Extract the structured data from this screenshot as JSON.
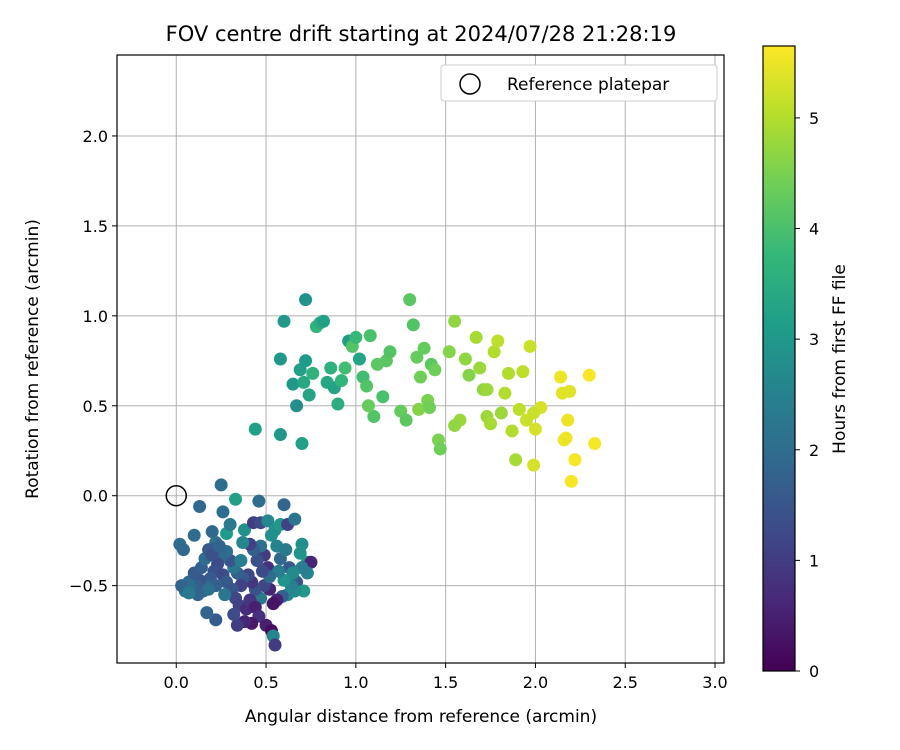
{
  "chart_data": {
    "type": "scatter",
    "title": "FOV centre drift starting at 2024/07/28 21:28:19",
    "xlabel": "Angular distance from reference (arcmin)",
    "ylabel": "Rotation from reference (arcmin)",
    "xlim": [
      -0.33,
      3.05
    ],
    "ylim": [
      -0.93,
      2.45
    ],
    "xticks": [
      0.0,
      0.5,
      1.0,
      1.5,
      2.0,
      2.5,
      3.0
    ],
    "xtick_labels": [
      "0.0",
      "0.5",
      "1.0",
      "1.5",
      "2.0",
      "2.5",
      "3.0"
    ],
    "yticks": [
      -0.5,
      0.0,
      0.5,
      1.0,
      1.5,
      2.0
    ],
    "ytick_labels": [
      "−0.5",
      "0.0",
      "0.5",
      "1.0",
      "1.5",
      "2.0"
    ],
    "grid": true,
    "legend_position": "top-right",
    "legend": {
      "label": "Reference platepar",
      "marker": "open-circle"
    },
    "reference_point": {
      "x": 0.0,
      "y": 0.0
    },
    "colorbar": {
      "label": "Hours from first FF file",
      "colormap": "viridis",
      "range": [
        0,
        5.65
      ],
      "ticks": [
        0,
        1,
        2,
        3,
        4,
        5
      ],
      "tick_labels": [
        "0",
        "1",
        "2",
        "3",
        "4",
        "5"
      ],
      "stops": [
        "#440154",
        "#482878",
        "#3e4a89",
        "#31688e",
        "#26828e",
        "#1f9e89",
        "#35b779",
        "#6ece58",
        "#b5de2b",
        "#fde725"
      ]
    },
    "series": [
      {
        "color_encoding": "hours",
        "points": [
          {
            "x": 0.25,
            "y": 0.06,
            "h": 2.0
          },
          {
            "x": 0.13,
            "y": -0.06,
            "h": 1.9
          },
          {
            "x": 0.46,
            "y": -0.03,
            "h": 2.0
          },
          {
            "x": 0.33,
            "y": -0.02,
            "h": 3.2
          },
          {
            "x": 0.6,
            "y": -0.05,
            "h": 1.8
          },
          {
            "x": 0.26,
            "y": -0.09,
            "h": 2.0
          },
          {
            "x": 0.02,
            "y": -0.27,
            "h": 2.0
          },
          {
            "x": 0.04,
            "y": -0.3,
            "h": 1.9
          },
          {
            "x": 0.1,
            "y": -0.22,
            "h": 2.0
          },
          {
            "x": 0.2,
            "y": -0.2,
            "h": 1.9
          },
          {
            "x": 0.22,
            "y": -0.26,
            "h": 2.1
          },
          {
            "x": 0.28,
            "y": -0.21,
            "h": 3.1
          },
          {
            "x": 0.3,
            "y": -0.16,
            "h": 2.3
          },
          {
            "x": 0.38,
            "y": -0.19,
            "h": 2.8
          },
          {
            "x": 0.43,
            "y": -0.15,
            "h": 1.0
          },
          {
            "x": 0.47,
            "y": -0.15,
            "h": 1.3
          },
          {
            "x": 0.51,
            "y": -0.14,
            "h": 2.6
          },
          {
            "x": 0.55,
            "y": -0.19,
            "h": 2.9
          },
          {
            "x": 0.58,
            "y": -0.16,
            "h": 3.0
          },
          {
            "x": 0.62,
            "y": -0.16,
            "h": 1.1
          },
          {
            "x": 0.66,
            "y": -0.13,
            "h": 2.2
          },
          {
            "x": 0.7,
            "y": -0.27,
            "h": 2.8
          },
          {
            "x": 0.73,
            "y": -0.37,
            "h": 3.1
          },
          {
            "x": 0.69,
            "y": -0.32,
            "h": 2.9
          },
          {
            "x": 0.75,
            "y": -0.37,
            "h": 0.6
          },
          {
            "x": 0.73,
            "y": -0.43,
            "h": 2.5
          },
          {
            "x": 0.7,
            "y": -0.4,
            "h": 2.4
          },
          {
            "x": 0.67,
            "y": -0.48,
            "h": 1.5
          },
          {
            "x": 0.71,
            "y": -0.53,
            "h": 3.0
          },
          {
            "x": 0.66,
            "y": -0.53,
            "h": 2.7
          },
          {
            "x": 0.64,
            "y": -0.5,
            "h": 2.5
          },
          {
            "x": 0.62,
            "y": -0.55,
            "h": 2.6
          },
          {
            "x": 0.59,
            "y": -0.56,
            "h": 1.7
          },
          {
            "x": 0.56,
            "y": -0.58,
            "h": 0.5
          },
          {
            "x": 0.54,
            "y": -0.6,
            "h": 0.3
          },
          {
            "x": 0.52,
            "y": -0.52,
            "h": 0.6
          },
          {
            "x": 0.49,
            "y": -0.5,
            "h": 1.2
          },
          {
            "x": 0.47,
            "y": -0.57,
            "h": 2.3
          },
          {
            "x": 0.44,
            "y": -0.52,
            "h": 1.4
          },
          {
            "x": 0.42,
            "y": -0.48,
            "h": 0.9
          },
          {
            "x": 0.4,
            "y": -0.44,
            "h": 1.2
          },
          {
            "x": 0.37,
            "y": -0.46,
            "h": 1.6
          },
          {
            "x": 0.36,
            "y": -0.5,
            "h": 1.1
          },
          {
            "x": 0.34,
            "y": -0.43,
            "h": 1.7
          },
          {
            "x": 0.32,
            "y": -0.4,
            "h": 2.2
          },
          {
            "x": 0.3,
            "y": -0.36,
            "h": 1.5
          },
          {
            "x": 0.28,
            "y": -0.31,
            "h": 2.0
          },
          {
            "x": 0.25,
            "y": -0.34,
            "h": 1.9
          },
          {
            "x": 0.23,
            "y": -0.38,
            "h": 1.3
          },
          {
            "x": 0.21,
            "y": -0.42,
            "h": 1.4
          },
          {
            "x": 0.19,
            "y": -0.46,
            "h": 1.6
          },
          {
            "x": 0.17,
            "y": -0.5,
            "h": 1.8
          },
          {
            "x": 0.15,
            "y": -0.53,
            "h": 2.0
          },
          {
            "x": 0.13,
            "y": -0.47,
            "h": 1.5
          },
          {
            "x": 0.11,
            "y": -0.5,
            "h": 1.7
          },
          {
            "x": 0.09,
            "y": -0.52,
            "h": 1.9
          },
          {
            "x": 0.07,
            "y": -0.48,
            "h": 2.0
          },
          {
            "x": 0.05,
            "y": -0.53,
            "h": 2.1
          },
          {
            "x": 0.03,
            "y": -0.5,
            "h": 1.8
          },
          {
            "x": 0.1,
            "y": -0.43,
            "h": 1.6
          },
          {
            "x": 0.14,
            "y": -0.4,
            "h": 1.7
          },
          {
            "x": 0.16,
            "y": -0.35,
            "h": 2.0
          },
          {
            "x": 0.18,
            "y": -0.3,
            "h": 1.6
          },
          {
            "x": 0.2,
            "y": -0.33,
            "h": 1.4
          },
          {
            "x": 0.24,
            "y": -0.28,
            "h": 1.8
          },
          {
            "x": 0.26,
            "y": -0.44,
            "h": 1.3
          },
          {
            "x": 0.28,
            "y": -0.48,
            "h": 1.6
          },
          {
            "x": 0.31,
            "y": -0.52,
            "h": 1.5
          },
          {
            "x": 0.33,
            "y": -0.57,
            "h": 1.2
          },
          {
            "x": 0.35,
            "y": -0.61,
            "h": 1.1
          },
          {
            "x": 0.39,
            "y": -0.63,
            "h": 0.7
          },
          {
            "x": 0.41,
            "y": -0.58,
            "h": 0.9
          },
          {
            "x": 0.44,
            "y": -0.62,
            "h": 0.5
          },
          {
            "x": 0.46,
            "y": -0.67,
            "h": 0.8
          },
          {
            "x": 0.42,
            "y": -0.71,
            "h": 0.4
          },
          {
            "x": 0.38,
            "y": -0.7,
            "h": 0.6
          },
          {
            "x": 0.34,
            "y": -0.72,
            "h": 1.0
          },
          {
            "x": 0.32,
            "y": -0.66,
            "h": 1.3
          },
          {
            "x": 0.22,
            "y": -0.69,
            "h": 1.6
          },
          {
            "x": 0.17,
            "y": -0.65,
            "h": 1.8
          },
          {
            "x": 0.27,
            "y": -0.55,
            "h": 2.2
          },
          {
            "x": 0.5,
            "y": -0.72,
            "h": 0.5
          },
          {
            "x": 0.53,
            "y": -0.75,
            "h": 0.2
          },
          {
            "x": 0.54,
            "y": -0.78,
            "h": 2.6
          },
          {
            "x": 0.55,
            "y": -0.83,
            "h": 1.0
          },
          {
            "x": 0.51,
            "y": -0.4,
            "h": 0.8
          },
          {
            "x": 0.49,
            "y": -0.33,
            "h": 1.0
          },
          {
            "x": 0.47,
            "y": -0.28,
            "h": 2.1
          },
          {
            "x": 0.45,
            "y": -0.36,
            "h": 1.4
          },
          {
            "x": 0.43,
            "y": -0.3,
            "h": 1.7
          },
          {
            "x": 0.41,
            "y": -0.27,
            "h": 1.1
          },
          {
            "x": 0.53,
            "y": -0.22,
            "h": 2.8
          },
          {
            "x": 0.56,
            "y": -0.28,
            "h": 2.5
          },
          {
            "x": 0.58,
            "y": -0.35,
            "h": 1.9
          },
          {
            "x": 0.61,
            "y": -0.3,
            "h": 2.3
          },
          {
            "x": 0.63,
            "y": -0.4,
            "h": 1.6
          },
          {
            "x": 0.65,
            "y": -0.43,
            "h": 2.7
          },
          {
            "x": 0.6,
            "y": -0.47,
            "h": 2.9
          },
          {
            "x": 0.57,
            "y": -0.42,
            "h": 2.4
          },
          {
            "x": 0.52,
            "y": -0.45,
            "h": 2.0
          },
          {
            "x": 0.48,
            "y": -0.42,
            "h": 1.3
          },
          {
            "x": 0.36,
            "y": -0.36,
            "h": 2.4
          },
          {
            "x": 0.37,
            "y": -0.26,
            "h": 2.6
          },
          {
            "x": 0.22,
            "y": -0.5,
            "h": 1.7
          },
          {
            "x": 0.18,
            "y": -0.52,
            "h": 2.1
          },
          {
            "x": 0.12,
            "y": -0.55,
            "h": 1.8
          },
          {
            "x": 0.07,
            "y": -0.54,
            "h": 2.3
          },
          {
            "x": 0.44,
            "y": 0.37,
            "h": 3.2
          },
          {
            "x": 0.58,
            "y": 0.34,
            "h": 3.0
          },
          {
            "x": 0.7,
            "y": 0.29,
            "h": 3.2
          },
          {
            "x": 0.58,
            "y": 0.76,
            "h": 3.0
          },
          {
            "x": 0.6,
            "y": 0.97,
            "h": 3.0
          },
          {
            "x": 0.72,
            "y": 1.09,
            "h": 2.9
          },
          {
            "x": 0.65,
            "y": 0.62,
            "h": 3.0
          },
          {
            "x": 0.67,
            "y": 0.5,
            "h": 2.8
          },
          {
            "x": 0.69,
            "y": 0.7,
            "h": 3.2
          },
          {
            "x": 0.71,
            "y": 0.63,
            "h": 3.4
          },
          {
            "x": 0.72,
            "y": 0.75,
            "h": 3.1
          },
          {
            "x": 0.74,
            "y": 0.56,
            "h": 3.3
          },
          {
            "x": 0.76,
            "y": 0.68,
            "h": 3.6
          },
          {
            "x": 0.78,
            "y": 0.94,
            "h": 3.7
          },
          {
            "x": 0.8,
            "y": 0.96,
            "h": 3.5
          },
          {
            "x": 0.82,
            "y": 0.97,
            "h": 3.2
          },
          {
            "x": 0.84,
            "y": 0.63,
            "h": 3.4
          },
          {
            "x": 0.86,
            "y": 0.71,
            "h": 3.6
          },
          {
            "x": 0.88,
            "y": 0.6,
            "h": 3.3
          },
          {
            "x": 0.9,
            "y": 0.51,
            "h": 3.5
          },
          {
            "x": 0.92,
            "y": 0.64,
            "h": 3.7
          },
          {
            "x": 0.94,
            "y": 0.71,
            "h": 3.9
          },
          {
            "x": 0.96,
            "y": 0.86,
            "h": 3.1
          },
          {
            "x": 0.98,
            "y": 0.83,
            "h": 4.1
          },
          {
            "x": 1.0,
            "y": 0.88,
            "h": 3.8
          },
          {
            "x": 1.02,
            "y": 0.76,
            "h": 3.3
          },
          {
            "x": 1.04,
            "y": 0.66,
            "h": 3.9
          },
          {
            "x": 1.06,
            "y": 0.61,
            "h": 4.1
          },
          {
            "x": 1.08,
            "y": 0.89,
            "h": 4.0
          },
          {
            "x": 1.1,
            "y": 0.44,
            "h": 4.1
          },
          {
            "x": 1.12,
            "y": 0.73,
            "h": 4.2
          },
          {
            "x": 1.07,
            "y": 0.5,
            "h": 4.3
          },
          {
            "x": 1.15,
            "y": 0.55,
            "h": 4.0
          },
          {
            "x": 1.17,
            "y": 0.75,
            "h": 4.2
          },
          {
            "x": 1.19,
            "y": 0.8,
            "h": 4.1
          },
          {
            "x": 1.25,
            "y": 0.47,
            "h": 4.3
          },
          {
            "x": 1.28,
            "y": 0.42,
            "h": 4.2
          },
          {
            "x": 1.3,
            "y": 1.09,
            "h": 4.2
          },
          {
            "x": 1.32,
            "y": 0.95,
            "h": 4.1
          },
          {
            "x": 1.34,
            "y": 0.77,
            "h": 4.3
          },
          {
            "x": 1.36,
            "y": 0.66,
            "h": 4.4
          },
          {
            "x": 1.38,
            "y": 0.82,
            "h": 4.3
          },
          {
            "x": 1.4,
            "y": 0.53,
            "h": 4.5
          },
          {
            "x": 1.42,
            "y": 0.73,
            "h": 4.2
          },
          {
            "x": 1.44,
            "y": 0.7,
            "h": 4.4
          },
          {
            "x": 1.46,
            "y": 0.31,
            "h": 4.5
          },
          {
            "x": 1.47,
            "y": 0.26,
            "h": 4.4
          },
          {
            "x": 1.35,
            "y": 0.48,
            "h": 4.6
          },
          {
            "x": 1.41,
            "y": 0.49,
            "h": 4.4
          },
          {
            "x": 1.52,
            "y": 0.8,
            "h": 4.6
          },
          {
            "x": 1.55,
            "y": 0.97,
            "h": 4.7
          },
          {
            "x": 1.58,
            "y": 0.42,
            "h": 4.8
          },
          {
            "x": 1.55,
            "y": 0.39,
            "h": 4.7
          },
          {
            "x": 1.61,
            "y": 0.76,
            "h": 4.7
          },
          {
            "x": 1.63,
            "y": 0.67,
            "h": 4.6
          },
          {
            "x": 1.67,
            "y": 0.88,
            "h": 4.9
          },
          {
            "x": 1.69,
            "y": 0.71,
            "h": 4.8
          },
          {
            "x": 1.71,
            "y": 0.59,
            "h": 4.7
          },
          {
            "x": 1.73,
            "y": 0.44,
            "h": 4.8
          },
          {
            "x": 1.75,
            "y": 0.4,
            "h": 4.9
          },
          {
            "x": 1.77,
            "y": 0.8,
            "h": 5.0
          },
          {
            "x": 1.79,
            "y": 0.86,
            "h": 5.1
          },
          {
            "x": 1.81,
            "y": 0.46,
            "h": 4.8
          },
          {
            "x": 1.83,
            "y": 0.57,
            "h": 5.0
          },
          {
            "x": 1.87,
            "y": 0.36,
            "h": 5.0
          },
          {
            "x": 1.89,
            "y": 0.2,
            "h": 4.9
          },
          {
            "x": 1.91,
            "y": 0.48,
            "h": 5.1
          },
          {
            "x": 1.93,
            "y": 0.69,
            "h": 5.1
          },
          {
            "x": 1.95,
            "y": 0.42,
            "h": 5.2
          },
          {
            "x": 1.97,
            "y": 0.83,
            "h": 5.2
          },
          {
            "x": 1.99,
            "y": 0.17,
            "h": 5.3
          },
          {
            "x": 2.0,
            "y": 0.37,
            "h": 5.3
          },
          {
            "x": 2.03,
            "y": 0.49,
            "h": 5.3
          },
          {
            "x": 1.99,
            "y": 0.46,
            "h": 5.2
          },
          {
            "x": 2.14,
            "y": 0.66,
            "h": 5.5
          },
          {
            "x": 2.15,
            "y": 0.57,
            "h": 5.4
          },
          {
            "x": 2.16,
            "y": 0.31,
            "h": 5.5
          },
          {
            "x": 2.18,
            "y": 0.42,
            "h": 5.5
          },
          {
            "x": 2.19,
            "y": 0.58,
            "h": 5.4
          },
          {
            "x": 2.2,
            "y": 0.08,
            "h": 5.6
          },
          {
            "x": 2.22,
            "y": 0.2,
            "h": 5.6
          },
          {
            "x": 2.3,
            "y": 0.67,
            "h": 5.6
          },
          {
            "x": 2.33,
            "y": 0.29,
            "h": 5.6
          },
          {
            "x": 2.17,
            "y": 0.32,
            "h": 5.5
          },
          {
            "x": 1.85,
            "y": 0.68,
            "h": 5.0
          },
          {
            "x": 1.73,
            "y": 0.59,
            "h": 4.8
          }
        ]
      }
    ]
  }
}
